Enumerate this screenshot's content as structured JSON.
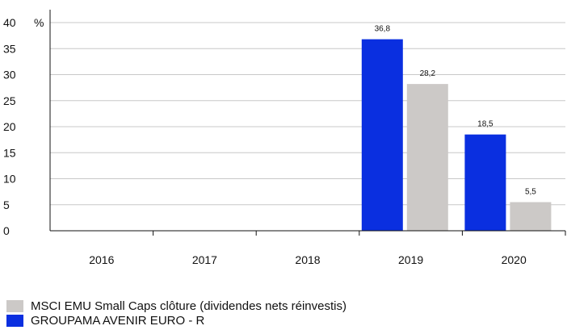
{
  "chart_data": {
    "type": "bar",
    "categories": [
      "2016",
      "2017",
      "2018",
      "2019",
      "2020"
    ],
    "series": [
      {
        "name": "GROUPAMA AVENIR EURO - R",
        "color": "#0a2fe0",
        "values": [
          null,
          null,
          null,
          36.8,
          18.5
        ],
        "labels": [
          "",
          "",
          "",
          "36,8",
          "18,5"
        ]
      },
      {
        "name": "MSCI EMU Small Caps clôture (dividendes nets réinvestis)",
        "color": "#ccc9c7",
        "values": [
          null,
          null,
          null,
          28.2,
          5.5
        ],
        "labels": [
          "",
          "",
          "",
          "28,2",
          "5,5"
        ]
      }
    ],
    "y_unit": "%",
    "ylim": [
      0,
      40
    ],
    "yticks": [
      0,
      5,
      10,
      15,
      20,
      25,
      30,
      35,
      40
    ],
    "grid": true,
    "legend_position": "bottom-left"
  },
  "legend": [
    {
      "label": "MSCI EMU Small Caps clôture (dividendes nets réinvestis)",
      "color": "#ccc9c7"
    },
    {
      "label": "GROUPAMA AVENIR EURO - R",
      "color": "#0a2fe0"
    }
  ]
}
